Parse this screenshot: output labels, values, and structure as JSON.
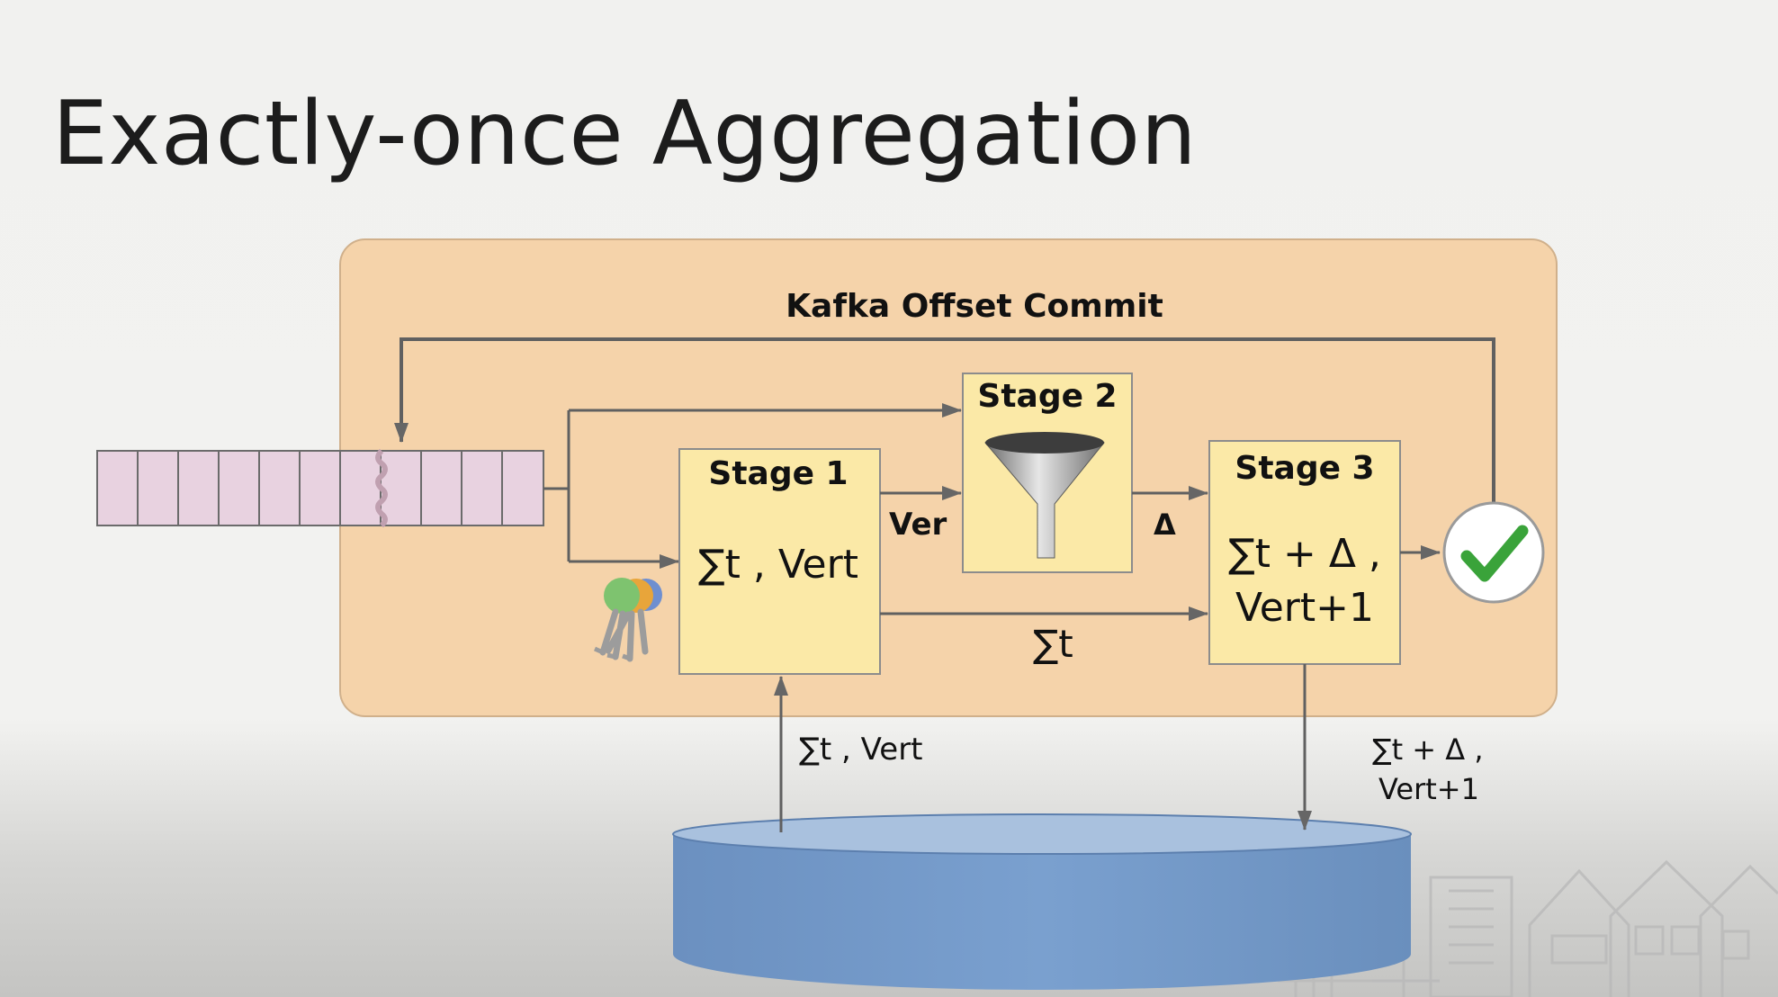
{
  "title": "Exactly-once Aggregation",
  "diagram": {
    "container_label": "Kafka Offset Commit",
    "stage1": {
      "title": "Stage 1",
      "body": "∑t , Vert"
    },
    "stage2": {
      "title": "Stage 2"
    },
    "stage3": {
      "title": "Stage 3",
      "line1": "∑t + Δ ,",
      "line2": "Vert+1"
    },
    "edge_labels": {
      "ver": "Ver",
      "delta": "Δ",
      "sum": "∑t",
      "db_to_stage1": "∑t , Vert",
      "stage3_to_db_line1": "∑t + Δ ,",
      "stage3_to_db_line2": "Vert+1"
    },
    "icons": [
      "queue",
      "cut-mark",
      "keys-icon",
      "funnel-icon",
      "check-icon",
      "database",
      "houses"
    ]
  }
}
